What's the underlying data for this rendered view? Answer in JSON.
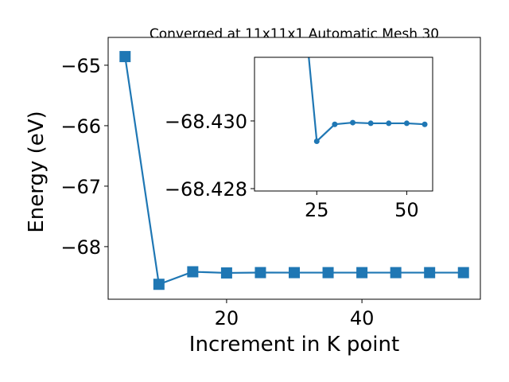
{
  "chart_data": [
    {
      "type": "line",
      "title": "Converged at 11x11x1 Automatic Mesh 30",
      "x_label": "Increment in K point",
      "y_label": "Energy (eV)",
      "x": [
        5,
        10,
        15,
        20,
        25,
        30,
        35,
        40,
        45,
        50,
        55
      ],
      "series": [
        {
          "name": "Energy",
          "color": "#1f77b4",
          "marker": "square",
          "values": [
            -64.857,
            -68.623,
            -68.416,
            -68.435,
            -68.4294,
            -68.4299,
            -68.42995,
            -68.42993,
            -68.42993,
            -68.42993,
            -68.4299
          ]
        }
      ],
      "xlim": [
        2.5,
        57.5
      ],
      "xticks": [
        20,
        40
      ],
      "ylim": [
        -68.87,
        -64.54
      ],
      "yticks": [
        {
          "value": -68,
          "label": "−68"
        },
        {
          "value": -67,
          "label": "−67"
        },
        {
          "value": -66,
          "label": "−66"
        },
        {
          "value": -65,
          "label": "−65"
        }
      ]
    },
    {
      "type": "line",
      "x": [
        20,
        25,
        30,
        35,
        40,
        45,
        50,
        55
      ],
      "series": [
        {
          "name": "Energy",
          "color": "#1f77b4",
          "marker": "circle",
          "values": [
            -68.435,
            -68.4294,
            -68.4299,
            -68.42995,
            -68.42993,
            -68.42993,
            -68.42993,
            -68.4299
          ]
        }
      ],
      "xlim": [
        7.7,
        57.2
      ],
      "xticks": [
        25,
        50
      ],
      "ylim": [
        -68.42793,
        -68.43188
      ],
      "yticks": [
        {
          "value": -68.428,
          "label": "−68.428"
        },
        {
          "value": -68.43,
          "label": "−68.430"
        }
      ]
    }
  ]
}
